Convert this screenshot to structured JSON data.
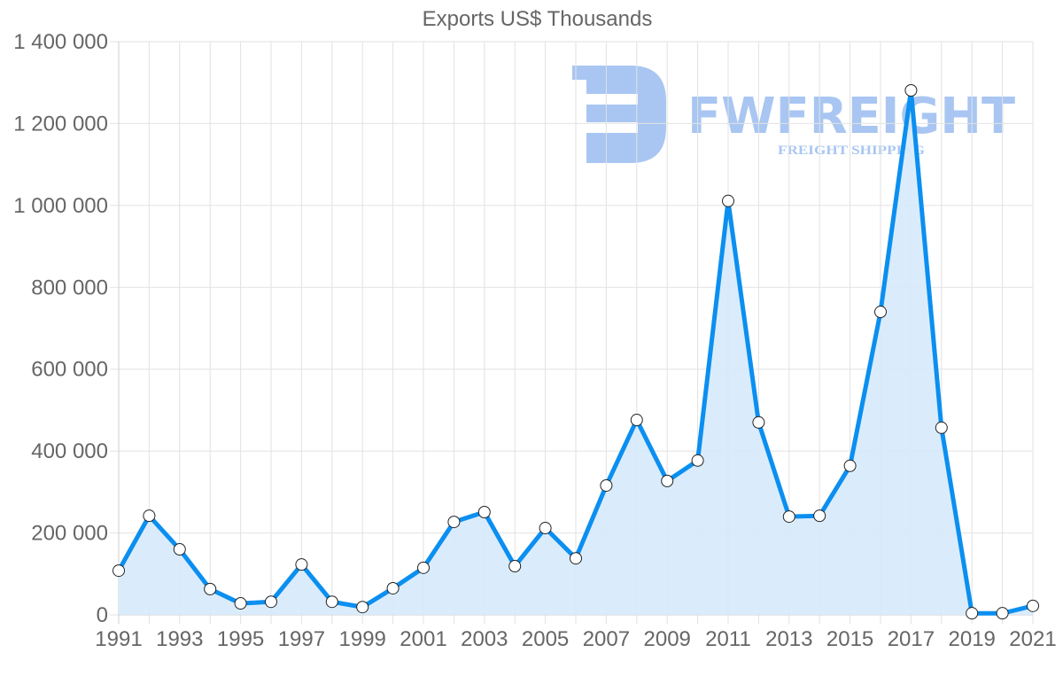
{
  "title": "Exports US$ Thousands",
  "watermark": {
    "brand": "FWFREIGHT",
    "tagline": "FREIGHT SHIPPING",
    "color": "#a9c6f2"
  },
  "colors": {
    "line": "#0b8ff0",
    "fill": "#d6eafc",
    "grid": "#e2e2e2",
    "axis": "#cfcfcf",
    "text": "#666666",
    "point_fill": "#ffffff",
    "point_stroke": "#222222"
  },
  "chart_data": {
    "type": "line",
    "title": "Exports US$ Thousands",
    "xlabel": "",
    "ylabel": "",
    "ylim": [
      0,
      1400000
    ],
    "grid": true,
    "legend": null,
    "fill_area": true,
    "y_ticks": [
      0,
      200000,
      400000,
      600000,
      800000,
      1000000,
      1200000,
      1400000
    ],
    "y_tick_labels": [
      "0",
      "200 000",
      "400 000",
      "600 000",
      "800 000",
      "1 000 000",
      "1 200 000",
      "1 400 000"
    ],
    "x_tick_labels": [
      "1991",
      "1993",
      "1995",
      "1997",
      "1999",
      "2001",
      "2003",
      "2005",
      "2007",
      "2009",
      "2011",
      "2013",
      "2015",
      "2017",
      "2019",
      "2021"
    ],
    "categories": [
      "1991",
      "1992",
      "1993",
      "1994",
      "1995",
      "1996",
      "1997",
      "1998",
      "1999",
      "2000",
      "2001",
      "2002",
      "2003",
      "2004",
      "2005",
      "2006",
      "2007",
      "2008",
      "2009",
      "2010",
      "2011",
      "2012",
      "2013",
      "2014",
      "2015",
      "2016",
      "2017",
      "2018",
      "2019",
      "2020",
      "2021"
    ],
    "series": [
      {
        "name": "Exports US$ Thousands",
        "values": [
          108000,
          242000,
          160000,
          63000,
          28000,
          32000,
          123000,
          32000,
          19000,
          65000,
          115000,
          227000,
          251000,
          119000,
          212000,
          138000,
          316000,
          476000,
          327000,
          377000,
          1011000,
          470000,
          240000,
          242000,
          364000,
          740000,
          1281000,
          457000,
          4000,
          4000,
          22000
        ]
      }
    ]
  }
}
